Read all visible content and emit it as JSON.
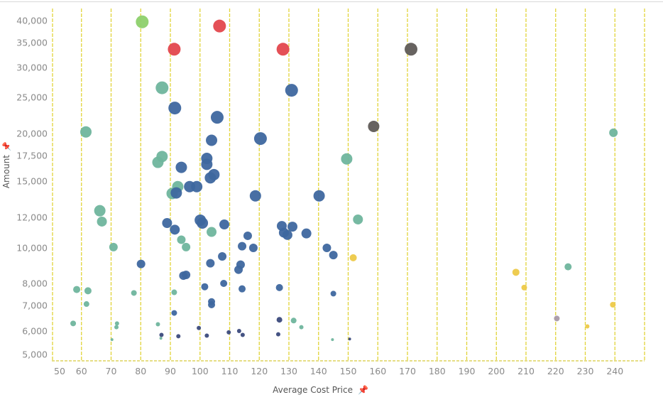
{
  "chart_data": {
    "type": "scatter",
    "title": "",
    "xlabel": "Average Cost Price",
    "ylabel": "Amount",
    "x_axis_pin_icon": "pin-icon",
    "y_axis_pin_icon": "pin-icon",
    "xlim": [
      50,
      250
    ],
    "ylim": [
      4850,
      43000
    ],
    "y_scale": "log",
    "grid": {
      "vertical": true,
      "horizontal": false,
      "style": "dashed",
      "color": "#e2d43a"
    },
    "x_ticks": [
      "50",
      "60",
      "70",
      "80",
      "90",
      "100",
      "110",
      "120",
      "130",
      "140",
      "150",
      "160",
      "170",
      "180",
      "190",
      "200",
      "210",
      "220",
      "230",
      "240"
    ],
    "x_tick_values": [
      50,
      60,
      70,
      80,
      90,
      100,
      110,
      120,
      130,
      140,
      150,
      160,
      170,
      180,
      190,
      200,
      210,
      220,
      230,
      240
    ],
    "y_ticks": [
      "5,000",
      "6,000",
      "7,000",
      "8,000",
      "10,000",
      "12,000",
      "15,000",
      "17,500",
      "20,000",
      "25,000",
      "30,000",
      "35,000",
      "40,000"
    ],
    "y_tick_values": [
      5000,
      6000,
      7000,
      8000,
      10000,
      12000,
      15000,
      17500,
      20000,
      25000,
      30000,
      35000,
      40000
    ],
    "colors": {
      "green": "#8dd06c",
      "red": "#e3474d",
      "gray": "#5f5b57",
      "teal": "#6fb59d",
      "blue": "#3e679f",
      "navy": "#3b4a7c",
      "yellow": "#edc948",
      "mauve": "#a99aa9"
    },
    "points": [
      {
        "x": 80.5,
        "y": 39700,
        "size": 9,
        "color": "green"
      },
      {
        "x": 106.6,
        "y": 38700,
        "size": 9,
        "color": "red"
      },
      {
        "x": 91.3,
        "y": 33600,
        "size": 9,
        "color": "red"
      },
      {
        "x": 128.0,
        "y": 33600,
        "size": 9,
        "color": "red"
      },
      {
        "x": 171.2,
        "y": 33600,
        "size": 9,
        "color": "gray"
      },
      {
        "x": 87.2,
        "y": 26500,
        "size": 9,
        "color": "teal"
      },
      {
        "x": 130.9,
        "y": 26100,
        "size": 9,
        "color": "blue"
      },
      {
        "x": 91.5,
        "y": 23400,
        "size": 9,
        "color": "blue"
      },
      {
        "x": 105.8,
        "y": 22100,
        "size": 9,
        "color": "blue"
      },
      {
        "x": 61.5,
        "y": 20200,
        "size": 8,
        "color": "teal"
      },
      {
        "x": 158.6,
        "y": 20900,
        "size": 8,
        "color": "gray"
      },
      {
        "x": 120.4,
        "y": 19400,
        "size": 9,
        "color": "blue"
      },
      {
        "x": 103.9,
        "y": 19200,
        "size": 8,
        "color": "blue"
      },
      {
        "x": 239.5,
        "y": 20100,
        "size": 6,
        "color": "teal"
      },
      {
        "x": 87.2,
        "y": 17400,
        "size": 8,
        "color": "teal"
      },
      {
        "x": 85.8,
        "y": 16800,
        "size": 8,
        "color": "teal"
      },
      {
        "x": 93.7,
        "y": 16300,
        "size": 8,
        "color": "blue"
      },
      {
        "x": 102.3,
        "y": 17200,
        "size": 8,
        "color": "blue"
      },
      {
        "x": 102.3,
        "y": 16600,
        "size": 8,
        "color": "blue"
      },
      {
        "x": 104.7,
        "y": 15600,
        "size": 8,
        "color": "blue"
      },
      {
        "x": 103.5,
        "y": 15300,
        "size": 8,
        "color": "blue"
      },
      {
        "x": 149.5,
        "y": 17150,
        "size": 8,
        "color": "teal"
      },
      {
        "x": 92.5,
        "y": 14500,
        "size": 8,
        "color": "teal"
      },
      {
        "x": 90.6,
        "y": 13900,
        "size": 8,
        "color": "teal"
      },
      {
        "x": 92.0,
        "y": 13950,
        "size": 8,
        "color": "blue"
      },
      {
        "x": 96.5,
        "y": 14500,
        "size": 8,
        "color": "blue"
      },
      {
        "x": 98.9,
        "y": 14500,
        "size": 8,
        "color": "blue"
      },
      {
        "x": 118.7,
        "y": 13700,
        "size": 8,
        "color": "blue"
      },
      {
        "x": 140.2,
        "y": 13700,
        "size": 8,
        "color": "blue"
      },
      {
        "x": 66.2,
        "y": 12500,
        "size": 8,
        "color": "teal"
      },
      {
        "x": 66.9,
        "y": 11700,
        "size": 7,
        "color": "teal"
      },
      {
        "x": 88.9,
        "y": 11600,
        "size": 7,
        "color": "blue"
      },
      {
        "x": 100.1,
        "y": 11800,
        "size": 8,
        "color": "blue"
      },
      {
        "x": 100.8,
        "y": 11600,
        "size": 8,
        "color": "blue"
      },
      {
        "x": 108.2,
        "y": 11500,
        "size": 7,
        "color": "blue"
      },
      {
        "x": 91.5,
        "y": 11150,
        "size": 7,
        "color": "blue"
      },
      {
        "x": 103.9,
        "y": 11000,
        "size": 7,
        "color": "teal"
      },
      {
        "x": 93.7,
        "y": 10500,
        "size": 6,
        "color": "teal"
      },
      {
        "x": 95.3,
        "y": 10050,
        "size": 6,
        "color": "teal"
      },
      {
        "x": 153.3,
        "y": 11850,
        "size": 7,
        "color": "teal"
      },
      {
        "x": 127.6,
        "y": 11400,
        "size": 7,
        "color": "blue"
      },
      {
        "x": 131.2,
        "y": 11350,
        "size": 7,
        "color": "blue"
      },
      {
        "x": 128.3,
        "y": 10950,
        "size": 7,
        "color": "blue"
      },
      {
        "x": 129.5,
        "y": 10800,
        "size": 7,
        "color": "blue"
      },
      {
        "x": 135.9,
        "y": 10900,
        "size": 7,
        "color": "blue"
      },
      {
        "x": 116.1,
        "y": 10750,
        "size": 6,
        "color": "blue"
      },
      {
        "x": 114.2,
        "y": 10100,
        "size": 6,
        "color": "blue"
      },
      {
        "x": 118.0,
        "y": 10000,
        "size": 6,
        "color": "blue"
      },
      {
        "x": 70.8,
        "y": 10050,
        "size": 6,
        "color": "teal"
      },
      {
        "x": 142.8,
        "y": 10000,
        "size": 6,
        "color": "blue"
      },
      {
        "x": 145.0,
        "y": 9560,
        "size": 6,
        "color": "blue"
      },
      {
        "x": 151.7,
        "y": 9400,
        "size": 5,
        "color": "yellow"
      },
      {
        "x": 80.1,
        "y": 9040,
        "size": 6,
        "color": "blue"
      },
      {
        "x": 107.5,
        "y": 9480,
        "size": 6,
        "color": "blue"
      },
      {
        "x": 103.5,
        "y": 9080,
        "size": 6,
        "color": "blue"
      },
      {
        "x": 113.7,
        "y": 9000,
        "size": 6,
        "color": "blue"
      },
      {
        "x": 113.0,
        "y": 8720,
        "size": 6,
        "color": "blue"
      },
      {
        "x": 94.4,
        "y": 8400,
        "size": 6,
        "color": "blue"
      },
      {
        "x": 95.3,
        "y": 8440,
        "size": 6,
        "color": "blue"
      },
      {
        "x": 108.0,
        "y": 8000,
        "size": 5,
        "color": "blue"
      },
      {
        "x": 101.6,
        "y": 7840,
        "size": 5,
        "color": "blue"
      },
      {
        "x": 114.2,
        "y": 7740,
        "size": 5,
        "color": "blue"
      },
      {
        "x": 126.8,
        "y": 7800,
        "size": 5,
        "color": "blue"
      },
      {
        "x": 145.0,
        "y": 7520,
        "size": 4,
        "color": "blue"
      },
      {
        "x": 103.9,
        "y": 7160,
        "size": 5,
        "color": "blue"
      },
      {
        "x": 103.9,
        "y": 7030,
        "size": 5,
        "color": "blue"
      },
      {
        "x": 58.4,
        "y": 7710,
        "size": 5,
        "color": "teal"
      },
      {
        "x": 62.2,
        "y": 7650,
        "size": 5,
        "color": "teal"
      },
      {
        "x": 61.7,
        "y": 7060,
        "size": 4,
        "color": "teal"
      },
      {
        "x": 77.7,
        "y": 7550,
        "size": 4,
        "color": "teal"
      },
      {
        "x": 91.3,
        "y": 7580,
        "size": 4,
        "color": "teal"
      },
      {
        "x": 91.3,
        "y": 6690,
        "size": 4,
        "color": "blue"
      },
      {
        "x": 126.8,
        "y": 6420,
        "size": 4,
        "color": "navy"
      },
      {
        "x": 131.6,
        "y": 6390,
        "size": 4,
        "color": "teal"
      },
      {
        "x": 134.2,
        "y": 6140,
        "size": 3,
        "color": "teal"
      },
      {
        "x": 57.2,
        "y": 6280,
        "size": 4,
        "color": "teal"
      },
      {
        "x": 72.0,
        "y": 6280,
        "size": 3,
        "color": "teal"
      },
      {
        "x": 71.8,
        "y": 6140,
        "size": 3,
        "color": "teal"
      },
      {
        "x": 85.8,
        "y": 6250,
        "size": 3,
        "color": "teal"
      },
      {
        "x": 99.6,
        "y": 6110,
        "size": 3,
        "color": "navy"
      },
      {
        "x": 206.6,
        "y": 8580,
        "size": 5,
        "color": "yellow"
      },
      {
        "x": 209.4,
        "y": 7800,
        "size": 4,
        "color": "yellow"
      },
      {
        "x": 224.2,
        "y": 8880,
        "size": 5,
        "color": "teal"
      },
      {
        "x": 239.3,
        "y": 7030,
        "size": 4,
        "color": "yellow"
      },
      {
        "x": 220.4,
        "y": 6470,
        "size": 4,
        "color": "mauve"
      },
      {
        "x": 230.7,
        "y": 6170,
        "size": 3,
        "color": "yellow"
      },
      {
        "x": 87.0,
        "y": 5820,
        "size": 3,
        "color": "navy"
      },
      {
        "x": 92.7,
        "y": 5760,
        "size": 3,
        "color": "navy"
      },
      {
        "x": 102.3,
        "y": 5790,
        "size": 3,
        "color": "navy"
      },
      {
        "x": 109.7,
        "y": 5940,
        "size": 3,
        "color": "navy"
      },
      {
        "x": 113.2,
        "y": 6000,
        "size": 3,
        "color": "navy"
      },
      {
        "x": 114.4,
        "y": 5820,
        "size": 3,
        "color": "navy"
      },
      {
        "x": 126.4,
        "y": 5850,
        "size": 3,
        "color": "navy"
      },
      {
        "x": 150.5,
        "y": 5640,
        "size": 2,
        "color": "navy"
      },
      {
        "x": 144.7,
        "y": 5610,
        "size": 2,
        "color": "teal"
      },
      {
        "x": 86.8,
        "y": 5670,
        "size": 2,
        "color": "teal"
      },
      {
        "x": 70.3,
        "y": 5610,
        "size": 2,
        "color": "teal"
      }
    ]
  }
}
